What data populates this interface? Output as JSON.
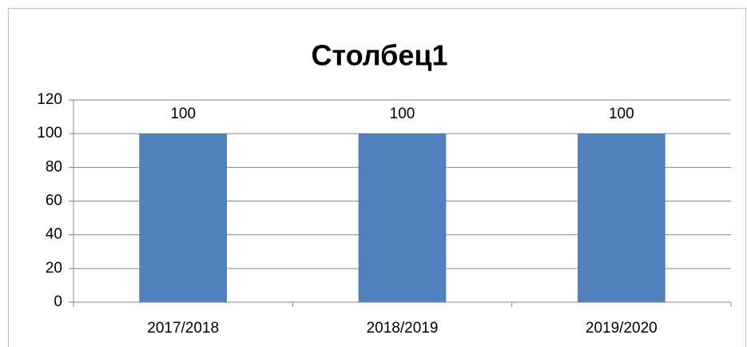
{
  "chart_data": {
    "type": "bar",
    "title": "Столбец1",
    "categories": [
      "2017/2018",
      "2018/2019",
      "2019/2020"
    ],
    "values": [
      100,
      100,
      100
    ],
    "color": "#4f81bd",
    "ylim": [
      0,
      120
    ],
    "yticks": [
      0,
      20,
      40,
      60,
      80,
      100,
      120
    ],
    "grid": true,
    "data_labels": true
  }
}
